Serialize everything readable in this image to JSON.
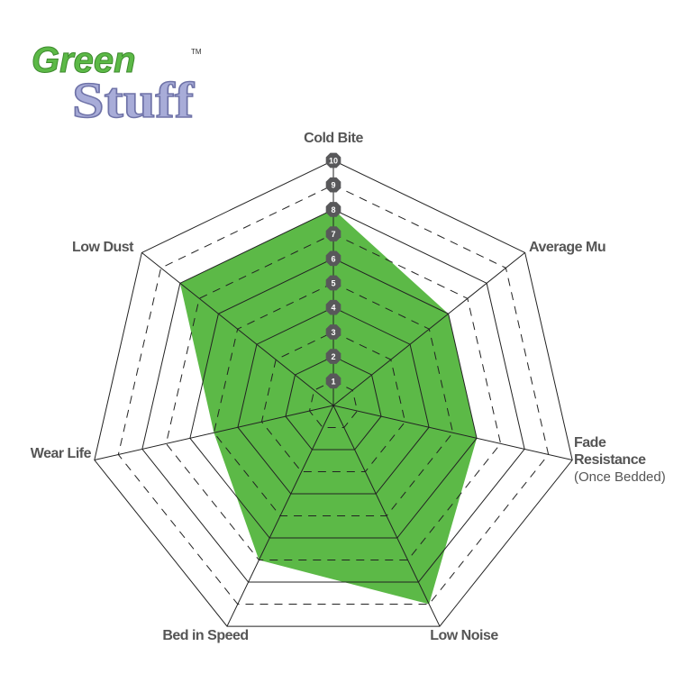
{
  "logo": {
    "line1": "Green",
    "line2": "Stuff",
    "trademark": "TM"
  },
  "chart_data": {
    "type": "radar",
    "categories": [
      "Cold Bite",
      "Average Mu",
      "Fade Resistance (Once Bedded)",
      "Low Noise",
      "Bed in Speed",
      "Wear Life",
      "Low Dust"
    ],
    "category_lines": [
      [
        "Cold Bite"
      ],
      [
        "Average Mu"
      ],
      [
        "Fade",
        "Resistance",
        "(Once Bedded)"
      ],
      [
        "Low Noise"
      ],
      [
        "Bed in Speed"
      ],
      [
        "Wear Life"
      ],
      [
        "Low Dust"
      ]
    ],
    "values": [
      8,
      6,
      6,
      9,
      7,
      5,
      8
    ],
    "scale_labels": [
      "1",
      "2",
      "3",
      "4",
      "5",
      "6",
      "7",
      "8",
      "9",
      "10"
    ],
    "rlim": [
      0,
      10
    ],
    "fill_color": "#5cb947",
    "badge_color": "#58585a"
  }
}
